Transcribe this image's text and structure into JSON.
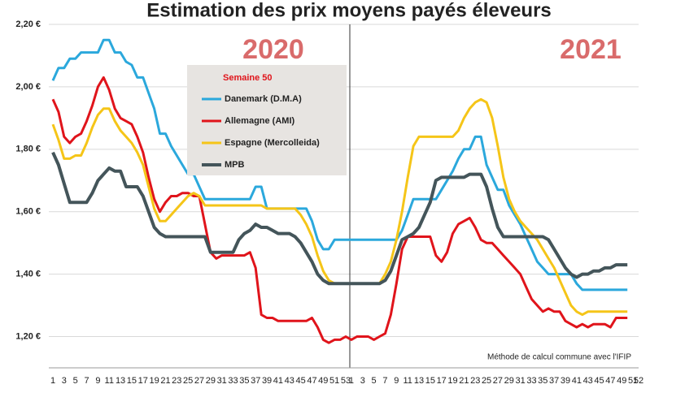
{
  "chart_data": {
    "type": "line",
    "title": "Estimation des prix moyens payés éleveurs",
    "annotations": [
      "2020",
      "2021"
    ],
    "legend_title": "Semaine 50",
    "note": "Méthode de calcul commune avec l'IFIP",
    "categories": [
      "1",
      null,
      "3",
      null,
      "5",
      null,
      "7",
      null,
      "9",
      null,
      "11",
      null,
      "13",
      null,
      "15",
      null,
      "17",
      null,
      "19",
      null,
      "21",
      null,
      "23",
      null,
      "25",
      null,
      "27",
      null,
      "29",
      null,
      "31",
      null,
      "33",
      null,
      "35",
      null,
      "37",
      null,
      "39",
      null,
      "41",
      null,
      "43",
      null,
      "45",
      null,
      "47",
      null,
      "49",
      null,
      "51",
      null,
      "53",
      "1",
      null,
      "3",
      null,
      "5",
      null,
      "7",
      null,
      "9",
      null,
      "11",
      null,
      "13",
      null,
      "15",
      null,
      "17",
      null,
      "19",
      null,
      "21",
      null,
      "23",
      null,
      "25",
      null,
      "27",
      null,
      "29",
      null,
      "31",
      null,
      "33",
      null,
      "35",
      null,
      "37",
      null,
      "39",
      null,
      "41",
      null,
      "43",
      null,
      "45",
      null,
      "47",
      null,
      "49",
      null,
      "51",
      "52"
    ],
    "series": [
      {
        "name": "Danemark (D.M.A)",
        "color": "#2ba8dc",
        "values": [
          2.02,
          2.06,
          2.06,
          2.09,
          2.09,
          2.11,
          2.11,
          2.11,
          2.11,
          2.15,
          2.15,
          2.11,
          2.11,
          2.08,
          2.07,
          2.03,
          2.03,
          1.98,
          1.93,
          1.85,
          1.85,
          1.81,
          1.78,
          1.75,
          1.72,
          1.72,
          1.68,
          1.64,
          1.64,
          1.64,
          1.64,
          1.64,
          1.64,
          1.64,
          1.64,
          1.64,
          1.68,
          1.68,
          1.61,
          1.61,
          1.61,
          1.61,
          1.61,
          1.61,
          1.61,
          1.61,
          1.57,
          1.51,
          1.48,
          1.48,
          1.51,
          1.51,
          1.51,
          1.51,
          1.51,
          1.51,
          1.51,
          1.51,
          1.51,
          1.51,
          1.51,
          1.51,
          1.54,
          1.59,
          1.64,
          1.64,
          1.64,
          1.64,
          1.64,
          1.67,
          1.7,
          1.73,
          1.77,
          1.8,
          1.8,
          1.84,
          1.84,
          1.75,
          1.71,
          1.67,
          1.67,
          1.62,
          1.59,
          1.56,
          1.52,
          1.48,
          1.44,
          1.42,
          1.4,
          1.4,
          1.4,
          1.4,
          1.4,
          1.37,
          1.35,
          1.35,
          1.35,
          1.35,
          1.35,
          1.35,
          1.35,
          1.35,
          1.35,
          null,
          null
        ]
      },
      {
        "name": "Allemagne (AMI)",
        "color": "#e0141b",
        "values": [
          1.96,
          1.92,
          1.84,
          1.82,
          1.84,
          1.85,
          1.89,
          1.94,
          2.0,
          2.03,
          1.99,
          1.93,
          1.9,
          1.89,
          1.88,
          1.84,
          1.79,
          1.71,
          1.64,
          1.6,
          1.63,
          1.65,
          1.65,
          1.66,
          1.66,
          1.65,
          1.65,
          1.56,
          1.47,
          1.45,
          1.46,
          1.46,
          1.46,
          1.46,
          1.46,
          1.47,
          1.42,
          1.27,
          1.26,
          1.26,
          1.25,
          1.25,
          1.25,
          1.25,
          1.25,
          1.25,
          1.26,
          1.23,
          1.19,
          1.18,
          1.19,
          1.19,
          1.2,
          1.19,
          1.2,
          1.2,
          1.2,
          1.19,
          1.2,
          1.21,
          1.27,
          1.37,
          1.48,
          1.52,
          1.52,
          1.52,
          1.52,
          1.52,
          1.46,
          1.44,
          1.47,
          1.53,
          1.56,
          1.57,
          1.58,
          1.55,
          1.51,
          1.5,
          1.5,
          1.48,
          1.46,
          1.44,
          1.42,
          1.4,
          1.36,
          1.32,
          1.3,
          1.28,
          1.29,
          1.28,
          1.28,
          1.25,
          1.24,
          1.23,
          1.24,
          1.23,
          1.24,
          1.24,
          1.24,
          1.23,
          1.26,
          1.26,
          1.26,
          null,
          null
        ]
      },
      {
        "name": "Espagne (Mercolleida)",
        "color": "#f5c518",
        "values": [
          1.88,
          1.83,
          1.77,
          1.77,
          1.78,
          1.78,
          1.82,
          1.87,
          1.91,
          1.93,
          1.93,
          1.89,
          1.86,
          1.84,
          1.82,
          1.79,
          1.75,
          1.68,
          1.61,
          1.57,
          1.57,
          1.59,
          1.61,
          1.63,
          1.65,
          1.66,
          1.65,
          1.62,
          1.62,
          1.62,
          1.62,
          1.62,
          1.62,
          1.62,
          1.62,
          1.62,
          1.62,
          1.62,
          1.61,
          1.61,
          1.61,
          1.61,
          1.61,
          1.61,
          1.59,
          1.56,
          1.52,
          1.46,
          1.41,
          1.38,
          1.37,
          1.37,
          1.37,
          1.37,
          1.37,
          1.37,
          1.37,
          1.37,
          1.37,
          1.4,
          1.44,
          1.51,
          1.6,
          1.71,
          1.81,
          1.84,
          1.84,
          1.84,
          1.84,
          1.84,
          1.84,
          1.84,
          1.86,
          1.9,
          1.93,
          1.95,
          1.96,
          1.95,
          1.9,
          1.81,
          1.71,
          1.64,
          1.6,
          1.57,
          1.55,
          1.53,
          1.51,
          1.48,
          1.45,
          1.42,
          1.38,
          1.34,
          1.3,
          1.28,
          1.27,
          1.28,
          1.28,
          1.28,
          1.28,
          1.28,
          1.28,
          1.28,
          1.28,
          null,
          null
        ]
      },
      {
        "name": "MPB",
        "color": "#44555a",
        "values": [
          1.79,
          1.75,
          1.69,
          1.63,
          1.63,
          1.63,
          1.63,
          1.66,
          1.7,
          1.72,
          1.74,
          1.73,
          1.73,
          1.68,
          1.68,
          1.68,
          1.65,
          1.6,
          1.55,
          1.53,
          1.52,
          1.52,
          1.52,
          1.52,
          1.52,
          1.52,
          1.52,
          1.52,
          1.47,
          1.47,
          1.47,
          1.47,
          1.47,
          1.51,
          1.53,
          1.54,
          1.56,
          1.55,
          1.55,
          1.54,
          1.53,
          1.53,
          1.53,
          1.52,
          1.5,
          1.47,
          1.44,
          1.4,
          1.38,
          1.37,
          1.37,
          1.37,
          1.37,
          1.37,
          1.37,
          1.37,
          1.37,
          1.37,
          1.37,
          1.38,
          1.41,
          1.46,
          1.51,
          1.52,
          1.53,
          1.55,
          1.59,
          1.63,
          1.7,
          1.71,
          1.71,
          1.71,
          1.71,
          1.71,
          1.72,
          1.72,
          1.72,
          1.68,
          1.61,
          1.55,
          1.52,
          1.52,
          1.52,
          1.52,
          1.52,
          1.52,
          1.52,
          1.52,
          1.51,
          1.48,
          1.45,
          1.42,
          1.4,
          1.39,
          1.4,
          1.4,
          1.41,
          1.41,
          1.42,
          1.42,
          1.43,
          1.43,
          1.43,
          null,
          null
        ]
      }
    ],
    "ylim": [
      1.1,
      2.2
    ],
    "yticks": [
      {
        "value": 1.2,
        "label": "1,20 €"
      },
      {
        "value": 1.4,
        "label": "1,40 €"
      },
      {
        "value": 1.6,
        "label": "1,60 €"
      },
      {
        "value": 1.8,
        "label": "1,80 €"
      },
      {
        "value": 2.0,
        "label": "2,00 €"
      },
      {
        "value": 2.2,
        "label": "2,20 €"
      }
    ],
    "grid": true
  }
}
